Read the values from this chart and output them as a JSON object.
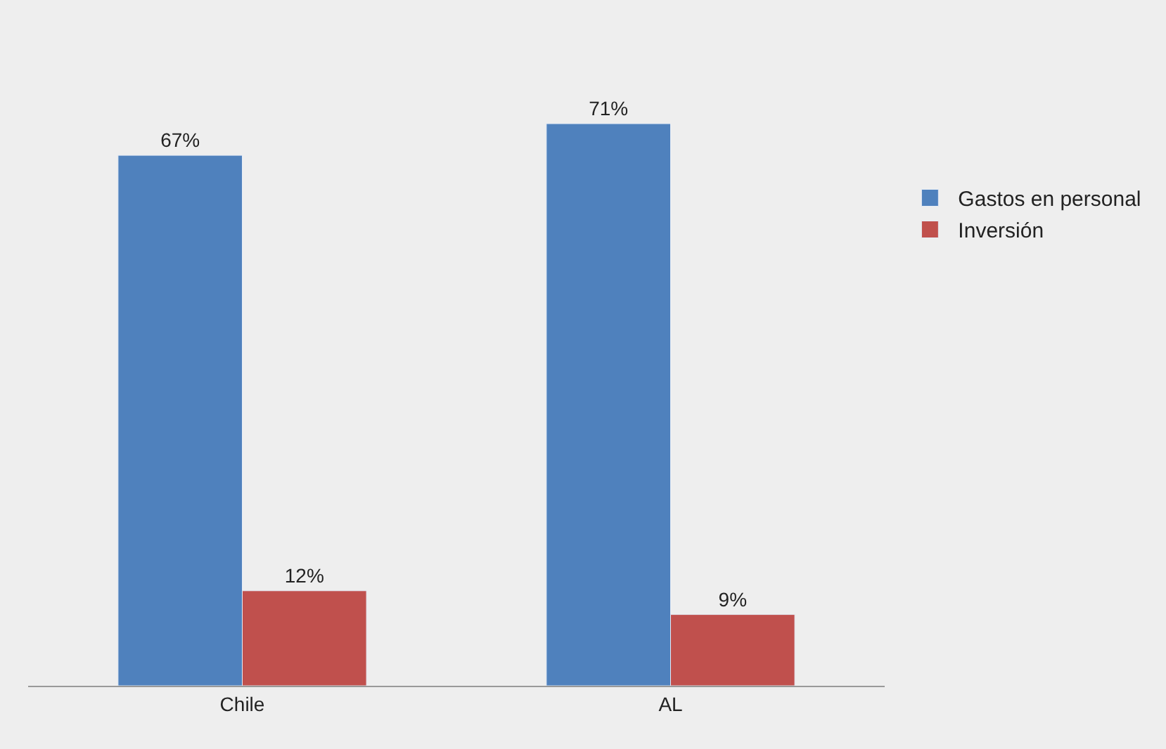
{
  "chart_data": {
    "type": "bar",
    "categories": [
      "Chile",
      "AL"
    ],
    "series": [
      {
        "name": "Gastos en personal",
        "color": "#4f81bd",
        "values": [
          67,
          71
        ],
        "value_labels": [
          "67%",
          "71%"
        ]
      },
      {
        "name": "Inversión",
        "color": "#c0504d",
        "values": [
          12,
          9
        ],
        "value_labels": [
          "12%",
          "9%"
        ]
      }
    ],
    "legend": "right",
    "grid": false
  }
}
